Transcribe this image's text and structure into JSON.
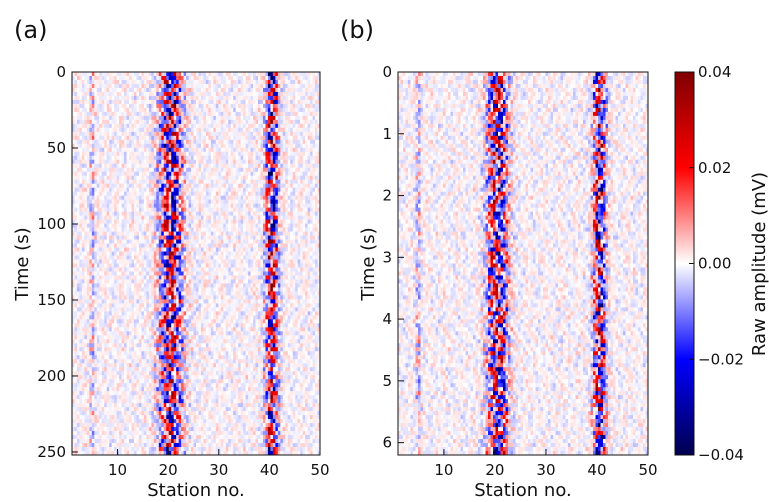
{
  "panels": [
    {
      "label": "(a)",
      "chart_data": {
        "type": "heatmap",
        "xlabel": "Station no.",
        "ylabel": "Time (s)",
        "xlim": [
          1,
          50
        ],
        "ylim": [
          0,
          252
        ],
        "y_inverted": true,
        "xticks": [
          10,
          20,
          30,
          40,
          50
        ],
        "yticks": [
          0,
          50,
          100,
          150,
          200,
          250
        ],
        "grid": false,
        "bands": [
          {
            "center_station": 20.5,
            "width_stations": 5.5,
            "strength": 0.95
          },
          {
            "center_station": 40.5,
            "width_stations": 3.0,
            "strength": 1.0
          },
          {
            "center_station": 5.0,
            "width_stations": 1.2,
            "strength": 0.22
          }
        ]
      }
    },
    {
      "label": "(b)",
      "chart_data": {
        "type": "heatmap",
        "xlabel": "Station no.",
        "ylabel": "Time (s)",
        "xlim": [
          1,
          50
        ],
        "ylim": [
          0,
          6.2
        ],
        "y_inverted": true,
        "xticks": [
          10,
          20,
          30,
          40,
          50
        ],
        "yticks": [
          0,
          1,
          2,
          3,
          4,
          5,
          6
        ],
        "grid": false,
        "bands": [
          {
            "center_station": 20.5,
            "width_stations": 5.0,
            "strength": 0.9
          },
          {
            "center_station": 40.5,
            "width_stations": 3.0,
            "strength": 0.95
          },
          {
            "center_station": 5.0,
            "width_stations": 1.2,
            "strength": 0.25
          }
        ]
      }
    }
  ],
  "colorbar": {
    "label": "Raw amplitude (mV)",
    "min": -0.04,
    "max": 0.04,
    "ticks": [
      0.04,
      0.02,
      0.0,
      -0.02,
      -0.04
    ],
    "tick_labels": [
      "0.04",
      "0.02",
      "0.00",
      "−0.02",
      "−0.04"
    ],
    "colormap": "seismic",
    "colors": {
      "low": "#00004d",
      "mid": "#ffffff",
      "high": "#800000"
    }
  }
}
